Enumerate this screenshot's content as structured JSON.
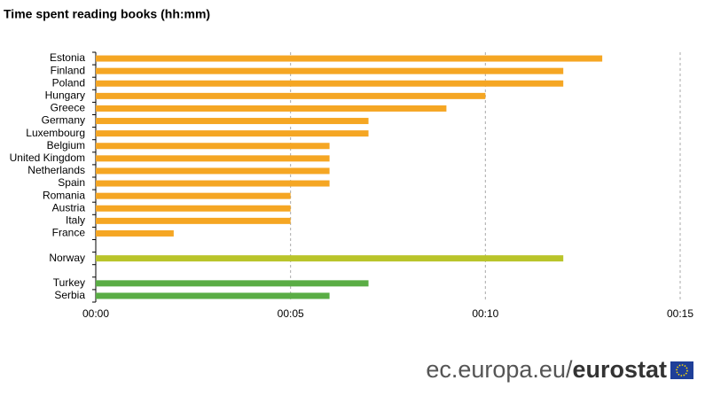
{
  "chart_data": {
    "type": "bar",
    "orientation": "horizontal",
    "title": "Time spent reading books (hh:mm)",
    "categories": [
      "Estonia",
      "Finland",
      "Poland",
      "Hungary",
      "Greece",
      "Germany",
      "Luxembourg",
      "Belgium",
      "United Kingdom",
      "Netherlands",
      "Spain",
      "Romania",
      "Austria",
      "Italy",
      "France",
      null,
      "Norway",
      null,
      "Turkey",
      "Serbia"
    ],
    "values": [
      13,
      12,
      12,
      10,
      9,
      7,
      7,
      6,
      6,
      6,
      6,
      5,
      5,
      5,
      2,
      null,
      12,
      null,
      7,
      6
    ],
    "colors": [
      "#f5a623",
      "#f5a623",
      "#f5a623",
      "#f5a623",
      "#f5a623",
      "#f5a623",
      "#f5a623",
      "#f5a623",
      "#f5a623",
      "#f5a623",
      "#f5a623",
      "#f5a623",
      "#f5a623",
      "#f5a623",
      "#f5a623",
      null,
      "#b9c42a",
      null,
      "#5aad45",
      "#5aad45"
    ],
    "xlim": [
      0,
      15
    ],
    "xticks": [
      {
        "value": 0,
        "label": "00:00"
      },
      {
        "value": 5,
        "label": "00:05"
      },
      {
        "value": 10,
        "label": "00:10"
      },
      {
        "value": 15,
        "label": "00:15"
      }
    ],
    "grid": true,
    "source": {
      "site": "ec.europa.eu/",
      "brand": "eurostat"
    }
  }
}
